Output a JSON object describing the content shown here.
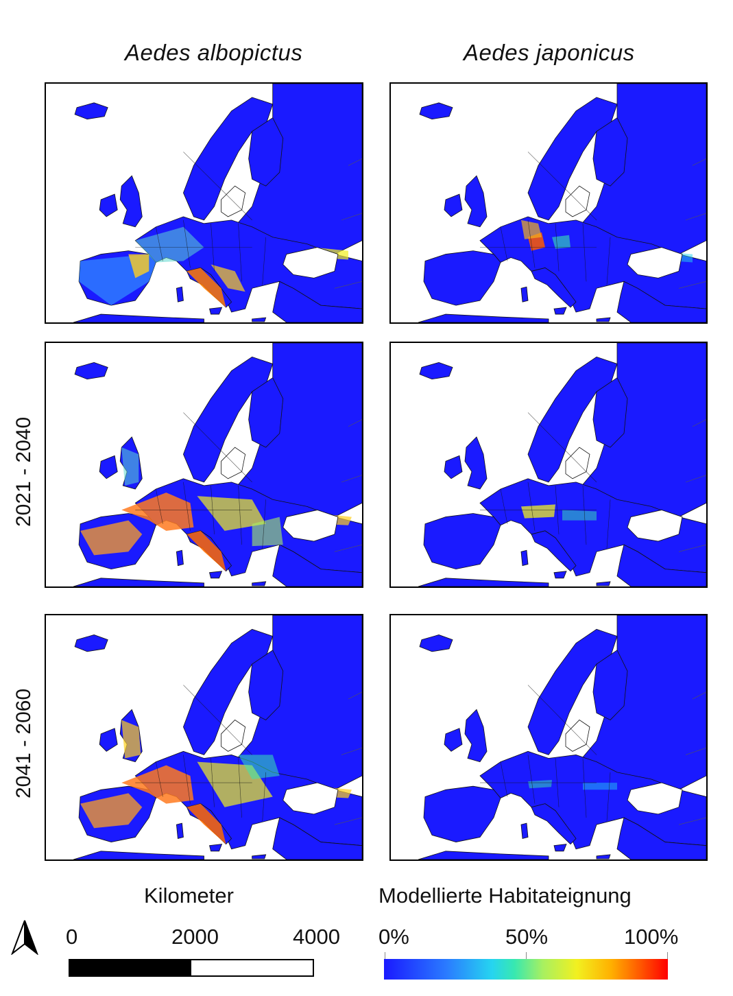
{
  "column_titles": [
    "Aedes albopictus",
    "Aedes japonicus"
  ],
  "row_labels": [
    "",
    "2021 - 2040",
    "2041 - 2060"
  ],
  "panels": [
    {
      "row": 1,
      "species": "Aedes albopictus",
      "period": "",
      "dominant_suitability": "low-medium, hot spots Italy/Balkans"
    },
    {
      "row": 1,
      "species": "Aedes japonicus",
      "period": "",
      "dominant_suitability": "low, hot spots Central Europe"
    },
    {
      "row": 2,
      "species": "Aedes albopictus",
      "period": "2021 - 2040",
      "dominant_suitability": "high in France/Italy"
    },
    {
      "row": 2,
      "species": "Aedes japonicus",
      "period": "2021 - 2040",
      "dominant_suitability": "low, Alpine band"
    },
    {
      "row": 3,
      "species": "Aedes albopictus",
      "period": "2041 - 2060",
      "dominant_suitability": "high in Western/Southern Europe"
    },
    {
      "row": 3,
      "species": "Aedes japonicus",
      "period": "2041 - 2060",
      "dominant_suitability": "very low"
    }
  ],
  "scale_bar": {
    "title": "Kilometer",
    "ticks": [
      "0",
      "2000",
      "4000"
    ]
  },
  "suitability_legend": {
    "title": "Modellierte Habitateignung",
    "ticks": [
      "0%",
      "50%",
      "100%"
    ]
  },
  "colors": {
    "low": "#1a1aff",
    "mid": "#38e8b0",
    "high": "#ff0000",
    "background": "#ffffff",
    "border": "#000000"
  },
  "icons": [
    "north-arrow-icon"
  ]
}
